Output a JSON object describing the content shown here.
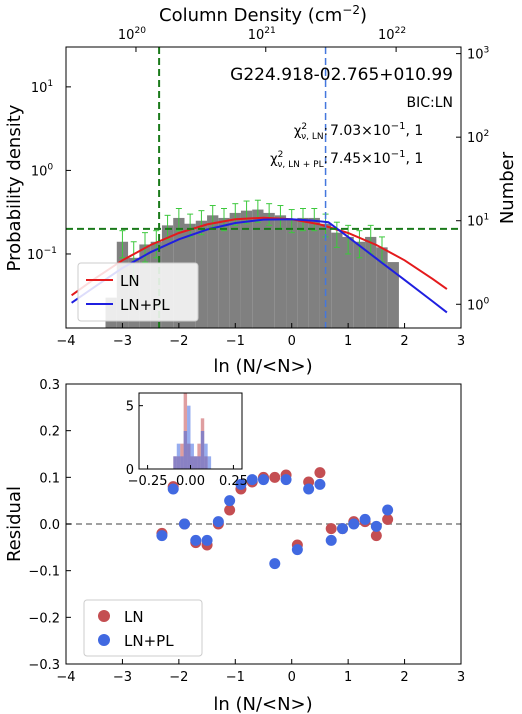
{
  "chart_data": [
    {
      "type": "bar",
      "title": "G224.918-02.765+010.99",
      "xlabel": "ln (N/<N>)",
      "ylabel": "Probability density",
      "ylabel_right": "Number",
      "xlabel_top": "Column Density (cm$^{-2}$)",
      "xlim": [
        -4,
        3
      ],
      "ylim_log": [
        0.013,
        30
      ],
      "xscale": "linear",
      "yscale": "log",
      "grid": false,
      "legend_position": "lower-left",
      "annotations": {
        "bic": "BIC:LN",
        "chi_ln_label": "χ²ᵥ,LN:",
        "chi_ln_value": "7.03×10⁻¹, 1",
        "chi_lnpl_label": "χ²ᵥ,LN+PL:",
        "chi_lnpl_value": "7.45×10⁻¹, 1"
      },
      "x_ticks": [
        "−4",
        "−3",
        "−2",
        "−1",
        "0",
        "1",
        "2",
        "3"
      ],
      "top_ticks": [
        {
          "base": "10",
          "exp": "20",
          "ln": -2.76
        },
        {
          "base": "10",
          "exp": "21",
          "ln": -0.46
        },
        {
          "base": "10",
          "exp": "22",
          "ln": 1.85
        }
      ],
      "left_ticks": [
        {
          "base": "10",
          "exp": "1",
          "value": 10
        },
        {
          "base": "10",
          "exp": "0",
          "value": 1
        },
        {
          "base": "10",
          "exp": "−1",
          "value": 0.1
        }
      ],
      "right_ticks": [
        {
          "base": "10",
          "exp": "3",
          "value": 1000
        },
        {
          "base": "10",
          "exp": "2",
          "value": 100
        },
        {
          "base": "10",
          "exp": "1",
          "value": 10
        },
        {
          "base": "10",
          "exp": "0",
          "value": 1
        }
      ],
      "right_axis_scale": 40,
      "bin_edges": [
        -3.3,
        -3.1,
        -2.9,
        -2.7,
        -2.5,
        -2.3,
        -2.1,
        -1.9,
        -1.7,
        -1.5,
        -1.3,
        -1.1,
        -0.9,
        -0.7,
        -0.5,
        -0.3,
        -0.1,
        0.1,
        0.3,
        0.5,
        0.7,
        0.9,
        1.1,
        1.3,
        1.5,
        1.7,
        1.9
      ],
      "bin_values": [
        0.03,
        0.14,
        0.09,
        0.13,
        0.14,
        0.22,
        0.27,
        0.23,
        0.25,
        0.29,
        0.27,
        0.31,
        0.33,
        0.34,
        0.31,
        0.29,
        0.26,
        0.27,
        0.27,
        0.23,
        0.18,
        0.16,
        0.14,
        0.16,
        0.12,
        0.08
      ],
      "error_bars": [
        {
          "x": -3.0,
          "y": 0.14,
          "lo": 0.09,
          "hi": 0.19
        },
        {
          "x": -2.8,
          "y": 0.09,
          "lo": 0.05,
          "hi": 0.14
        },
        {
          "x": -2.6,
          "y": 0.13,
          "lo": 0.08,
          "hi": 0.18
        },
        {
          "x": -2.4,
          "y": 0.14,
          "lo": 0.09,
          "hi": 0.19
        },
        {
          "x": -2.2,
          "y": 0.22,
          "lo": 0.15,
          "hi": 0.29
        },
        {
          "x": -2.0,
          "y": 0.27,
          "lo": 0.19,
          "hi": 0.35
        },
        {
          "x": -1.8,
          "y": 0.23,
          "lo": 0.16,
          "hi": 0.3
        },
        {
          "x": -1.6,
          "y": 0.25,
          "lo": 0.17,
          "hi": 0.33
        },
        {
          "x": -1.4,
          "y": 0.29,
          "lo": 0.2,
          "hi": 0.38
        },
        {
          "x": -1.2,
          "y": 0.27,
          "lo": 0.19,
          "hi": 0.35
        },
        {
          "x": -1.0,
          "y": 0.31,
          "lo": 0.22,
          "hi": 0.4
        },
        {
          "x": -0.8,
          "y": 0.33,
          "lo": 0.23,
          "hi": 0.43
        },
        {
          "x": -0.6,
          "y": 0.34,
          "lo": 0.24,
          "hi": 0.44
        },
        {
          "x": -0.4,
          "y": 0.31,
          "lo": 0.22,
          "hi": 0.4
        },
        {
          "x": -0.2,
          "y": 0.29,
          "lo": 0.2,
          "hi": 0.38
        },
        {
          "x": 0.0,
          "y": 0.26,
          "lo": 0.18,
          "hi": 0.34
        },
        {
          "x": 0.2,
          "y": 0.27,
          "lo": 0.19,
          "hi": 0.35
        },
        {
          "x": 0.4,
          "y": 0.27,
          "lo": 0.19,
          "hi": 0.35
        },
        {
          "x": 0.6,
          "y": 0.23,
          "lo": 0.16,
          "hi": 0.3
        },
        {
          "x": 0.8,
          "y": 0.18,
          "lo": 0.12,
          "hi": 0.24
        },
        {
          "x": 1.0,
          "y": 0.16,
          "lo": 0.1,
          "hi": 0.22
        },
        {
          "x": 1.2,
          "y": 0.14,
          "lo": 0.09,
          "hi": 0.19
        },
        {
          "x": 1.4,
          "y": 0.16,
          "lo": 0.1,
          "hi": 0.22
        },
        {
          "x": 1.6,
          "y": 0.12,
          "lo": 0.08,
          "hi": 0.16
        }
      ],
      "ln_fit": {
        "name": "LN",
        "color": "#e41a1c",
        "x": [
          -3.9,
          -3.5,
          -3.0,
          -2.5,
          -2.0,
          -1.5,
          -1.0,
          -0.5,
          0.0,
          0.5,
          1.0,
          1.5,
          2.0,
          2.5,
          2.75
        ],
        "y": [
          0.032,
          0.05,
          0.084,
          0.128,
          0.178,
          0.226,
          0.26,
          0.272,
          0.26,
          0.226,
          0.178,
          0.128,
          0.084,
          0.05,
          0.038
        ]
      },
      "lnpl_fit": {
        "name": "LN+PL",
        "color": "#1f1fe0",
        "x": [
          -3.9,
          -3.5,
          -3.0,
          -2.5,
          -2.0,
          -1.5,
          -1.0,
          -0.5,
          0.0,
          0.4,
          0.65,
          1.0,
          1.5,
          2.0,
          2.5,
          2.75
        ],
        "y": [
          0.026,
          0.04,
          0.068,
          0.105,
          0.15,
          0.196,
          0.235,
          0.258,
          0.26,
          0.25,
          0.24,
          0.16,
          0.088,
          0.049,
          0.027,
          0.02
        ]
      },
      "vline_green_x": -2.35,
      "vline_blue_x": 0.6,
      "hline_green_y": 0.2
    },
    {
      "type": "scatter",
      "xlabel": "ln (N/<N>)",
      "ylabel": "Residual",
      "xlim": [
        -4,
        3
      ],
      "ylim": [
        -0.3,
        0.3
      ],
      "legend_position": "lower-left",
      "x_ticks": [
        "−4",
        "−3",
        "−2",
        "−1",
        "0",
        "1",
        "2",
        "3"
      ],
      "y_ticks": [
        "0.3",
        "0.2",
        "0.1",
        "0.0",
        "−0.1",
        "−0.2",
        "−0.3"
      ],
      "series": [
        {
          "name": "LN",
          "color": "#c44e52",
          "x": [
            -2.3,
            -2.1,
            -1.9,
            -1.7,
            -1.5,
            -1.3,
            -1.1,
            -0.9,
            -0.7,
            -0.5,
            -0.3,
            -0.1,
            0.1,
            0.3,
            0.5,
            0.7,
            0.9,
            1.1,
            1.3,
            1.5,
            1.7
          ],
          "y": [
            -0.02,
            0.08,
            0.0,
            -0.04,
            -0.045,
            0.0,
            0.03,
            0.075,
            0.09,
            0.1,
            0.1,
            0.105,
            -0.045,
            0.09,
            0.11,
            -0.01,
            -0.01,
            0.005,
            0.005,
            -0.025,
            0.01
          ]
        },
        {
          "name": "LN+PL",
          "color": "#4169e1",
          "x": [
            -2.3,
            -2.1,
            -1.9,
            -1.7,
            -1.5,
            -1.3,
            -1.1,
            -0.9,
            -0.7,
            -0.5,
            -0.3,
            -0.1,
            0.1,
            0.3,
            0.5,
            0.7,
            0.9,
            1.1,
            1.3,
            1.5,
            1.7
          ],
          "y": [
            -0.025,
            0.075,
            0.0,
            -0.035,
            -0.035,
            0.005,
            0.05,
            0.085,
            0.095,
            0.095,
            -0.085,
            0.095,
            -0.055,
            0.075,
            0.085,
            -0.035,
            -0.01,
            0.0,
            0.01,
            -0.005,
            0.03
          ]
        }
      ],
      "zero_line": 0.0
    },
    {
      "type": "bar",
      "xlim": [
        -0.3,
        0.3
      ],
      "ylim": [
        0,
        6
      ],
      "x_ticks": [
        "−0.25",
        "0.00",
        "0.25"
      ],
      "y_ticks": [
        "5",
        "0"
      ],
      "series": [
        {
          "name": "LN",
          "color": "#c44e52",
          "bin_edges": [
            -0.1,
            -0.08,
            -0.06,
            -0.04,
            -0.02,
            0.0,
            0.02,
            0.04,
            0.06,
            0.08,
            0.1,
            0.12
          ],
          "counts": [
            1,
            1,
            2,
            6,
            2,
            1,
            1,
            2,
            4,
            1,
            0
          ]
        },
        {
          "name": "LN+PL",
          "color": "#4169e1",
          "bin_edges": [
            -0.1,
            -0.08,
            -0.06,
            -0.04,
            -0.02,
            0.0,
            0.02,
            0.04,
            0.06,
            0.08,
            0.1,
            0.12
          ],
          "counts": [
            1,
            2,
            1,
            3,
            5,
            2,
            1,
            1,
            3,
            2,
            1
          ]
        }
      ]
    }
  ]
}
